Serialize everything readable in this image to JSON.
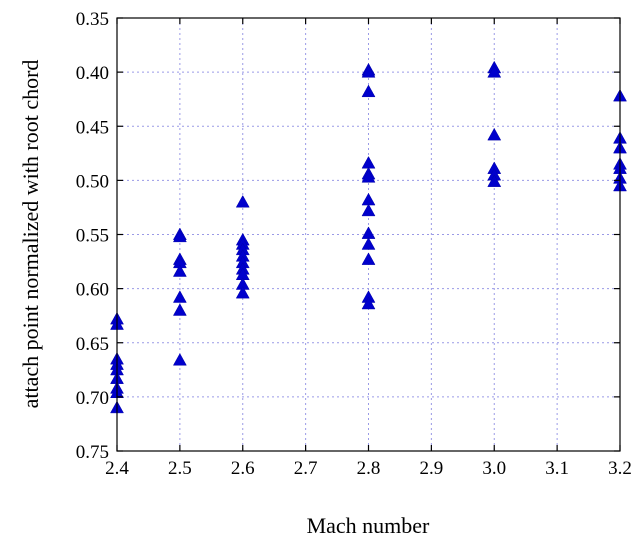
{
  "chart_data": {
    "type": "scatter",
    "xlabel": "Mach number",
    "ylabel": "attach point normalized with root chord",
    "xlim": [
      2.4,
      3.2
    ],
    "ylim": [
      0.35,
      0.75
    ],
    "y_inverted": true,
    "grid": true,
    "marker": "triangle-up",
    "marker_color": "#0000cc",
    "x_ticks": [
      "2.4",
      "2.5",
      "2.6",
      "2.7",
      "2.8",
      "2.9",
      "3.0",
      "3.1",
      "3.2"
    ],
    "y_ticks": [
      "0.35",
      "0.40",
      "0.45",
      "0.50",
      "0.55",
      "0.60",
      "0.65",
      "0.70",
      "0.75"
    ],
    "series": [
      {
        "points": [
          {
            "x": 2.4,
            "y": 0.628
          },
          {
            "x": 2.4,
            "y": 0.633
          },
          {
            "x": 2.4,
            "y": 0.665
          },
          {
            "x": 2.4,
            "y": 0.67
          },
          {
            "x": 2.4,
            "y": 0.675
          },
          {
            "x": 2.4,
            "y": 0.683
          },
          {
            "x": 2.4,
            "y": 0.692
          },
          {
            "x": 2.4,
            "y": 0.696
          },
          {
            "x": 2.4,
            "y": 0.71
          },
          {
            "x": 2.5,
            "y": 0.55
          },
          {
            "x": 2.5,
            "y": 0.552
          },
          {
            "x": 2.5,
            "y": 0.573
          },
          {
            "x": 2.5,
            "y": 0.576
          },
          {
            "x": 2.5,
            "y": 0.584
          },
          {
            "x": 2.5,
            "y": 0.608
          },
          {
            "x": 2.5,
            "y": 0.62
          },
          {
            "x": 2.5,
            "y": 0.666
          },
          {
            "x": 2.6,
            "y": 0.52
          },
          {
            "x": 2.6,
            "y": 0.555
          },
          {
            "x": 2.6,
            "y": 0.559
          },
          {
            "x": 2.6,
            "y": 0.564
          },
          {
            "x": 2.6,
            "y": 0.57
          },
          {
            "x": 2.6,
            "y": 0.576
          },
          {
            "x": 2.6,
            "y": 0.582
          },
          {
            "x": 2.6,
            "y": 0.587
          },
          {
            "x": 2.6,
            "y": 0.596
          },
          {
            "x": 2.6,
            "y": 0.604
          },
          {
            "x": 2.8,
            "y": 0.398
          },
          {
            "x": 2.8,
            "y": 0.4
          },
          {
            "x": 2.8,
            "y": 0.418
          },
          {
            "x": 2.8,
            "y": 0.484
          },
          {
            "x": 2.8,
            "y": 0.494
          },
          {
            "x": 2.8,
            "y": 0.497
          },
          {
            "x": 2.8,
            "y": 0.518
          },
          {
            "x": 2.8,
            "y": 0.528
          },
          {
            "x": 2.8,
            "y": 0.549
          },
          {
            "x": 2.8,
            "y": 0.559
          },
          {
            "x": 2.8,
            "y": 0.573
          },
          {
            "x": 2.8,
            "y": 0.608
          },
          {
            "x": 2.8,
            "y": 0.614
          },
          {
            "x": 3.0,
            "y": 0.396
          },
          {
            "x": 3.0,
            "y": 0.4
          },
          {
            "x": 3.0,
            "y": 0.458
          },
          {
            "x": 3.0,
            "y": 0.489
          },
          {
            "x": 3.0,
            "y": 0.495
          },
          {
            "x": 3.0,
            "y": 0.501
          },
          {
            "x": 3.2,
            "y": 0.422
          },
          {
            "x": 3.2,
            "y": 0.461
          },
          {
            "x": 3.2,
            "y": 0.47
          },
          {
            "x": 3.2,
            "y": 0.485
          },
          {
            "x": 3.2,
            "y": 0.489
          },
          {
            "x": 3.2,
            "y": 0.498
          },
          {
            "x": 3.2,
            "y": 0.505
          }
        ]
      }
    ]
  }
}
